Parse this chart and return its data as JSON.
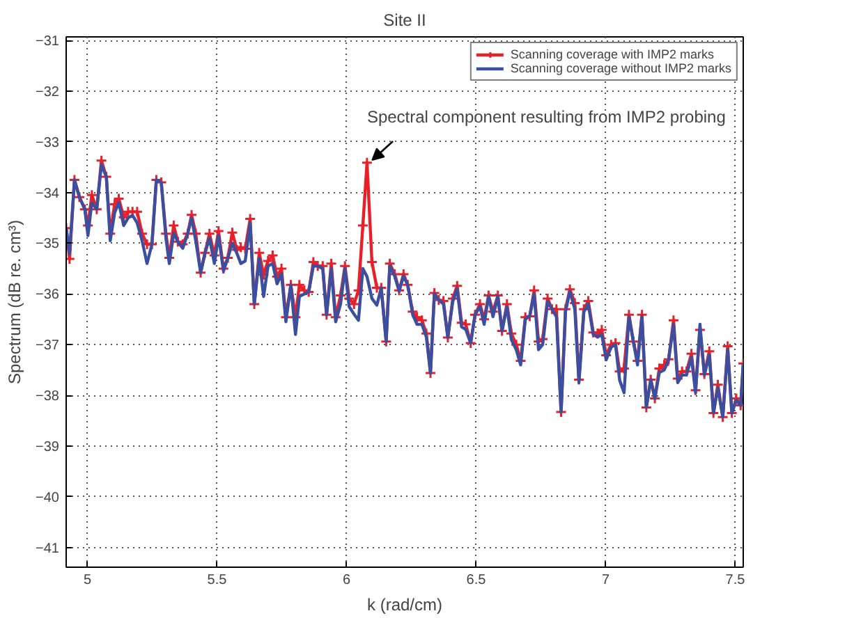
{
  "chart_data": {
    "type": "line",
    "title": "Site II",
    "xlabel": "k (rad/cm)",
    "ylabel": "Spectrum (dB re. cm³)",
    "x": [
      4.918,
      4.931,
      4.95,
      4.969,
      4.99,
      5.002,
      5.017,
      5.036,
      5.054,
      5.073,
      5.088,
      5.105,
      5.121,
      5.14,
      5.157,
      5.174,
      5.192,
      5.211,
      5.23,
      5.249,
      5.266,
      5.285,
      5.303,
      5.316,
      5.333,
      5.349,
      5.368,
      5.387,
      5.402,
      5.418,
      5.437,
      5.454,
      5.471,
      5.49,
      5.506,
      5.525,
      5.542,
      5.559,
      5.577,
      5.592,
      5.609,
      5.628,
      5.644,
      5.663,
      5.68,
      5.697,
      5.715,
      5.732,
      5.749,
      5.766,
      5.785,
      5.803,
      5.818,
      5.837,
      5.854,
      5.872,
      5.889,
      5.908,
      5.923,
      5.941,
      5.958,
      5.977,
      5.994,
      6.01,
      6.029,
      6.046,
      6.063,
      6.079,
      6.098,
      6.117,
      6.134,
      6.153,
      6.167,
      6.186,
      6.203,
      6.22,
      6.236,
      6.255,
      6.272,
      6.291,
      6.308,
      6.324,
      6.339,
      6.356,
      6.374,
      6.391,
      6.41,
      6.427,
      6.444,
      6.46,
      6.479,
      6.496,
      6.515,
      6.531,
      6.548,
      6.565,
      6.584,
      6.6,
      6.619,
      6.636,
      6.655,
      6.672,
      6.69,
      6.707,
      6.724,
      6.741,
      6.757,
      6.776,
      6.793,
      6.81,
      6.828,
      6.845,
      6.862,
      6.881,
      6.897,
      6.916,
      6.933,
      6.952,
      6.969,
      6.985,
      7.002,
      7.021,
      7.038,
      7.054,
      7.071,
      7.09,
      7.107,
      7.123,
      7.14,
      7.157,
      7.174,
      7.19,
      7.207,
      7.226,
      7.243,
      7.262,
      7.278,
      7.295,
      7.312,
      7.331,
      7.347,
      7.364,
      7.381,
      7.4,
      7.416,
      7.433,
      7.452,
      7.471,
      7.487,
      7.504,
      7.521,
      7.531
    ],
    "series": [
      {
        "name": "Scanning coverage with IMP2 marks",
        "color": "#e8202a",
        "marker": "cross",
        "values": [
          -34.7,
          -35.31,
          -33.75,
          -34.09,
          -34.33,
          -34.65,
          -34.05,
          -34.33,
          -33.37,
          -33.69,
          -34.81,
          -34.23,
          -34.12,
          -34.49,
          -34.38,
          -34.38,
          -34.38,
          -34.81,
          -35.02,
          -35.02,
          -33.75,
          -33.8,
          -34.81,
          -35.29,
          -34.65,
          -34.97,
          -35.02,
          -34.81,
          -34.44,
          -34.81,
          -35.58,
          -35.19,
          -34.81,
          -35.24,
          -34.76,
          -35.5,
          -35.29,
          -34.79,
          -35.13,
          -35.08,
          -35.11,
          -34.52,
          -36.2,
          -35.19,
          -35.62,
          -35.35,
          -35.24,
          -35.66,
          -35.5,
          -36.46,
          -35.82,
          -36.46,
          -35.82,
          -35.93,
          -35.96,
          -35.37,
          -35.45,
          -35.45,
          -36.41,
          -35.4,
          -36.46,
          -36.03,
          -35.45,
          -36.09,
          -36.2,
          -35.93,
          -34.65,
          -33.41,
          -35.37,
          -35.88,
          -35.88,
          -36.94,
          -35.4,
          -35.61,
          -35.93,
          -35.61,
          -35.82,
          -36.35,
          -36.46,
          -36.52,
          -36.78,
          -37.56,
          -35.98,
          -36.12,
          -36.14,
          -36.86,
          -36.09,
          -35.84,
          -36.57,
          -36.6,
          -36.97,
          -36.41,
          -36.2,
          -36.5,
          -36.03,
          -36.35,
          -36.03,
          -36.73,
          -36.2,
          -36.78,
          -37.0,
          -37.32,
          -36.46,
          -36.44,
          -35.93,
          -36.94,
          -36.89,
          -36.09,
          -36.3,
          -36.3,
          -38.33,
          -36.3,
          -35.91,
          -36.18,
          -37.69,
          -36.3,
          -36.14,
          -36.76,
          -36.78,
          -36.71,
          -37.21,
          -37.0,
          -36.97,
          -37.53,
          -37.47,
          -36.41,
          -36.94,
          -37.32,
          -36.41,
          -38.24,
          -37.69,
          -38.06,
          -37.47,
          -37.4,
          -37.29,
          -36.52,
          -37.67,
          -37.53,
          -37.53,
          -37.18,
          -37.9,
          -36.71,
          -37.58,
          -37.13,
          -38.35,
          -37.79,
          -38.43,
          -37.03,
          -38.35,
          -38.06,
          -38.2,
          -37.37
        ]
      },
      {
        "name": "Scanning coverage without IMP2 marks",
        "color": "#3a4fa0",
        "marker": "none",
        "values": [
          -34.7,
          -35.2,
          -33.75,
          -34.09,
          -34.33,
          -34.85,
          -34.2,
          -34.33,
          -33.45,
          -33.69,
          -34.95,
          -34.4,
          -34.2,
          -34.65,
          -34.5,
          -34.45,
          -34.6,
          -34.95,
          -35.4,
          -35.02,
          -33.75,
          -33.8,
          -34.9,
          -35.4,
          -34.8,
          -34.97,
          -35.1,
          -34.81,
          -34.5,
          -34.95,
          -35.58,
          -35.19,
          -34.9,
          -35.4,
          -34.85,
          -35.55,
          -35.29,
          -35.0,
          -35.2,
          -35.4,
          -35.35,
          -34.6,
          -36.2,
          -35.3,
          -36.05,
          -35.45,
          -35.4,
          -35.8,
          -35.6,
          -36.55,
          -35.82,
          -36.8,
          -36.05,
          -36.0,
          -35.96,
          -35.45,
          -35.45,
          -35.5,
          -36.41,
          -35.5,
          -36.55,
          -36.2,
          -35.5,
          -36.25,
          -36.4,
          -36.52,
          -35.5,
          -35.66,
          -36.09,
          -36.22,
          -35.88,
          -36.94,
          -35.45,
          -35.65,
          -35.95,
          -35.65,
          -35.82,
          -36.4,
          -36.6,
          -36.6,
          -36.85,
          -37.56,
          -36.0,
          -36.12,
          -36.2,
          -36.86,
          -36.15,
          -35.9,
          -36.65,
          -36.7,
          -36.97,
          -36.41,
          -36.25,
          -36.6,
          -36.05,
          -36.45,
          -36.05,
          -36.73,
          -36.25,
          -36.9,
          -37.1,
          -37.4,
          -36.5,
          -36.44,
          -36.0,
          -37.1,
          -37.0,
          -36.15,
          -36.3,
          -36.45,
          -38.33,
          -36.35,
          -35.95,
          -36.3,
          -37.75,
          -36.35,
          -36.2,
          -36.8,
          -36.85,
          -36.8,
          -37.3,
          -37.05,
          -37.0,
          -37.7,
          -37.95,
          -36.45,
          -36.94,
          -37.4,
          -36.45,
          -38.24,
          -37.69,
          -38.06,
          -37.55,
          -37.5,
          -37.3,
          -36.6,
          -37.75,
          -37.6,
          -37.6,
          -37.25,
          -37.95,
          -36.6,
          -37.6,
          -37.2,
          -38.35,
          -37.85,
          -38.43,
          -37.1,
          -38.35,
          -38.1,
          -38.2,
          -37.37
        ]
      }
    ],
    "xlim": [
      4.918,
      7.531
    ],
    "ylim": [
      -41.39,
      -30.93
    ],
    "xticks": [
      5,
      5.5,
      6,
      6.5,
      7,
      7.5
    ],
    "yticks": [
      -41,
      -40,
      -39,
      -38,
      -37,
      -36,
      -35,
      -34,
      -33,
      -32,
      -31
    ],
    "grid": true,
    "legend": "top right",
    "line_style": "solid",
    "annotations": [
      {
        "text": "Spectral component resulting from IMP2 probing",
        "x": 6.079,
        "y": -33.41
      }
    ]
  }
}
